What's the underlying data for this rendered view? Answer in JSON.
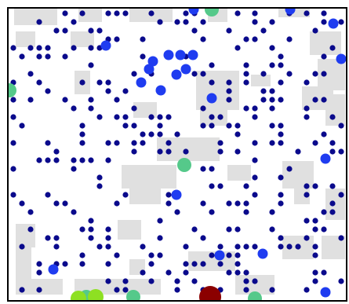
{
  "colors": {
    "background": "#ffffff",
    "terrain": "#e0e0e0",
    "border": "#000000",
    "agent_small": "#0a0a8c",
    "agent_blue": "#1f3cf0",
    "agent_green": "#55c98a",
    "agent_lime": "#8ee022",
    "agent_dark_red": "#8b0000"
  },
  "legend": [],
  "entities": {
    "total_visible": 330,
    "by_kind": [
      {
        "kind": "small_navy",
        "color_key": "agent_small"
      },
      {
        "kind": "medium_blue",
        "color_key": "agent_blue"
      },
      {
        "kind": "large_green",
        "color_key": "agent_green"
      },
      {
        "kind": "large_lime",
        "color_key": "agent_lime"
      },
      {
        "kind": "large_dark_red",
        "color_key": "agent_dark_red"
      }
    ]
  }
}
